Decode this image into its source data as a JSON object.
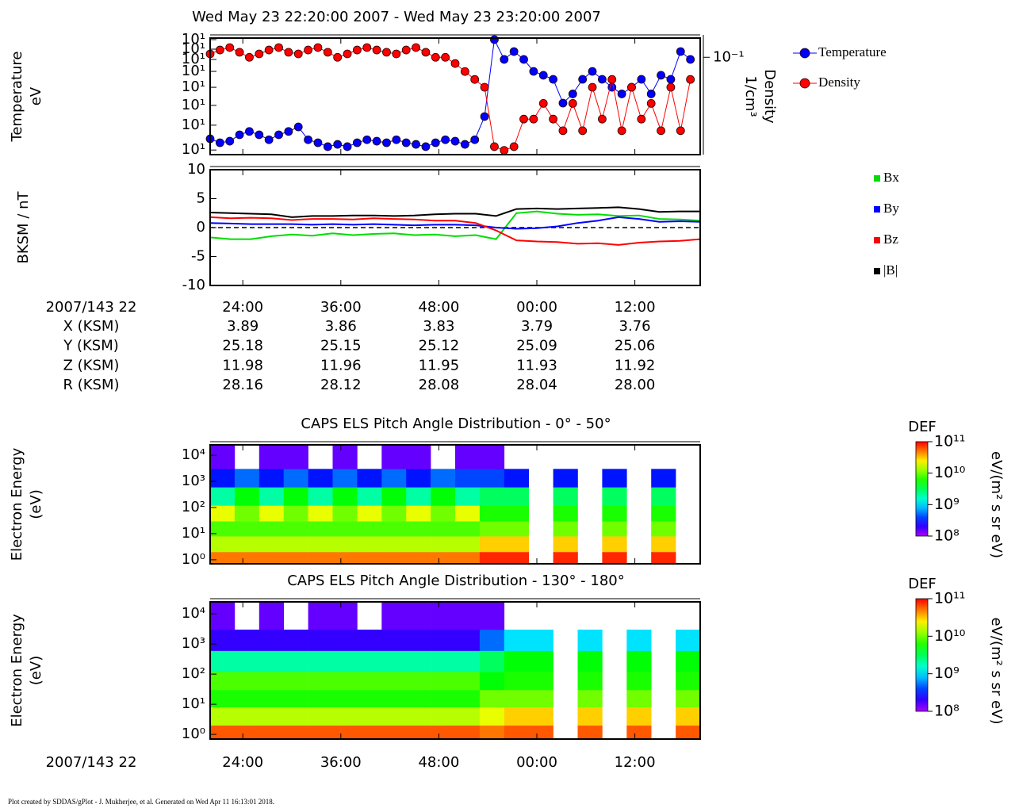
{
  "title": "Wed May 23 22:20:00 2007 - Wed May 23 23:20:00 2007",
  "footer": "Plot created by SDDAS/gPlot - J. Mukherjee, et al.  Generated on Wed Apr 11 16:13:01 2018.",
  "time_axis": {
    "label": "2007/143 22",
    "xlim": [
      0,
      60
    ],
    "xticks": [
      {
        "value": 4,
        "label": "24:00"
      },
      {
        "value": 16,
        "label": "36:00"
      },
      {
        "value": 28,
        "label": "48:00"
      },
      {
        "value": 40,
        "label": "00:00"
      },
      {
        "value": 52,
        "label": "12:00"
      }
    ]
  },
  "ephemeris": {
    "rows": [
      {
        "label": "X (KSM)",
        "values": [
          "3.89",
          "3.86",
          "3.83",
          "3.79",
          "3.76"
        ]
      },
      {
        "label": "Y (KSM)",
        "values": [
          "25.18",
          "25.15",
          "25.12",
          "25.09",
          "25.06"
        ]
      },
      {
        "label": "Z (KSM)",
        "values": [
          "11.98",
          "11.96",
          "11.95",
          "11.93",
          "11.92"
        ]
      },
      {
        "label": "R (KSM)",
        "values": [
          "28.16",
          "28.12",
          "28.08",
          "28.04",
          "28.00"
        ]
      }
    ]
  },
  "chart_data": [
    {
      "type": "line",
      "ylabel": [
        "Temperature",
        "eV"
      ],
      "y2label": [
        "Density",
        "1/cm³"
      ],
      "ylog": true,
      "y2log": true,
      "markers": true,
      "legend": "right",
      "ylim": [
        10,
        1000
      ],
      "yticks": [
        {
          "value": 12,
          "label": "10¹"
        },
        {
          "value": 32,
          "label": "10¹"
        },
        {
          "value": 70,
          "label": "10¹"
        },
        {
          "value": 143,
          "label": "10¹"
        },
        {
          "value": 268,
          "label": "10¹"
        },
        {
          "value": 430,
          "label": "10¹"
        },
        {
          "value": 645,
          "label": "10¹"
        },
        {
          "value": 940,
          "label": "10¹"
        }
      ],
      "y2lim": [
        0.003,
        0.2
      ],
      "y2ticks": [
        {
          "value": 0.1,
          "label": "10⁻¹"
        }
      ],
      "x": [
        0,
        1.2,
        2.4,
        3.6,
        4.8,
        6,
        7.2,
        8.4,
        9.6,
        10.8,
        12,
        13.2,
        14.4,
        15.6,
        16.8,
        18,
        19.2,
        20.4,
        21.6,
        22.8,
        24,
        25.2,
        26.4,
        27.6,
        28.8,
        30,
        31.2,
        32.4,
        33.6,
        34.8,
        36,
        37.2,
        38.4,
        39.6,
        40.8,
        42,
        43.2,
        44.4,
        45.6,
        46.8,
        48,
        49.2,
        50.4,
        51.6,
        52.8,
        54,
        55.2,
        56.4,
        57.6,
        58.8
      ],
      "series": [
        {
          "name": "Temperature",
          "color": "#0000ff",
          "values": [
            18.7,
            16,
            17,
            21.9,
            25,
            21.9,
            18,
            21.9,
            25,
            29.9,
            18,
            16,
            13.7,
            15,
            13.7,
            16,
            18,
            17,
            16,
            18,
            16,
            15,
            13.7,
            16,
            18,
            17,
            15,
            18,
            45,
            940,
            430,
            587,
            430,
            268,
            230,
            196,
            76.6,
            110,
            196,
            268,
            196,
            143,
            110,
            143,
            196,
            110,
            230,
            196,
            587,
            430
          ]
        },
        {
          "name": "Density",
          "color": "#ff0000",
          "axis": "y2",
          "values": [
            0.113,
            0.13,
            0.142,
            0.12,
            0.1,
            0.113,
            0.13,
            0.142,
            0.12,
            0.113,
            0.13,
            0.142,
            0.12,
            0.1,
            0.113,
            0.13,
            0.142,
            0.13,
            0.12,
            0.113,
            0.13,
            0.142,
            0.12,
            0.1,
            0.1,
            0.08,
            0.06,
            0.045,
            0.034,
            0.004,
            0.0035,
            0.004,
            0.0108,
            0.0108,
            0.019,
            0.0108,
            0.0071,
            0.019,
            0.0071,
            0.034,
            0.0108,
            0.045,
            0.0071,
            0.034,
            0.0108,
            0.019,
            0.0071,
            0.034,
            0.0071,
            0.045
          ]
        }
      ]
    },
    {
      "type": "line",
      "ylabel": [
        "BKSM / nT"
      ],
      "ylim": [
        -10,
        10
      ],
      "yticks": [
        -10,
        -5,
        0,
        5,
        10
      ],
      "reference_line": 0,
      "legend": "right",
      "x": [
        0,
        2.5,
        5,
        7.5,
        10,
        12.5,
        15,
        17.5,
        20,
        22.5,
        25,
        27.5,
        30,
        32.5,
        35,
        37.5,
        40,
        42.5,
        45,
        47.5,
        50,
        52.5,
        55,
        57.5,
        60
      ],
      "series": [
        {
          "name": "Bx",
          "color": "#00dd00",
          "values": [
            -1.7,
            -2.0,
            -2.0,
            -1.5,
            -1.2,
            -1.4,
            -1.0,
            -1.3,
            -1.1,
            -1.0,
            -1.3,
            -1.2,
            -1.5,
            -1.3,
            -2.0,
            2.5,
            2.8,
            2.4,
            2.2,
            2.3,
            2.0,
            2.1,
            1.5,
            1.4,
            1.2
          ]
        },
        {
          "name": "By",
          "color": "#0000ff",
          "values": [
            0.8,
            0.7,
            0.6,
            0.6,
            0.6,
            0.5,
            0.6,
            0.5,
            0.6,
            0.5,
            0.4,
            0.5,
            0.5,
            0.4,
            0.0,
            -0.2,
            -0.1,
            0.2,
            0.8,
            1.2,
            1.8,
            1.5,
            1.0,
            1.1,
            1.0
          ]
        },
        {
          "name": "Bz",
          "color": "#ff0000",
          "values": [
            1.8,
            1.6,
            1.7,
            1.6,
            1.3,
            1.5,
            1.5,
            1.4,
            1.6,
            1.5,
            1.4,
            1.2,
            1.2,
            0.8,
            -0.5,
            -2.2,
            -2.4,
            -2.5,
            -2.8,
            -2.7,
            -3.0,
            -2.6,
            -2.4,
            -2.3,
            -2.0
          ]
        },
        {
          "name": "|B|",
          "color": "#000000",
          "values": [
            2.6,
            2.5,
            2.4,
            2.3,
            1.8,
            2.0,
            2.0,
            2.1,
            2.1,
            2.0,
            2.1,
            2.3,
            2.4,
            2.4,
            2.0,
            3.2,
            3.3,
            3.2,
            3.3,
            3.4,
            3.5,
            3.2,
            2.7,
            2.8,
            2.8
          ]
        }
      ]
    },
    {
      "type": "heatmap",
      "title": "CAPS ELS Pitch Angle Distribution - 0° - 50°",
      "ylabel": [
        "Electron Energy",
        "(eV)"
      ],
      "ylog": true,
      "ylim": [
        0.7,
        25000
      ],
      "yticks": [
        {
          "value": 1,
          "label": "10⁰"
        },
        {
          "value": 10,
          "label": "10¹"
        },
        {
          "value": 100,
          "label": "10²"
        },
        {
          "value": 1000,
          "label": "10³"
        },
        {
          "value": 10000,
          "label": "10⁴"
        }
      ],
      "x_edges": [
        0,
        3,
        6,
        9,
        12,
        15,
        18,
        21,
        24,
        27,
        30,
        33,
        36,
        39,
        42,
        45,
        48,
        51,
        54,
        57,
        60
      ],
      "y_edges": [
        0.7,
        2,
        8,
        30,
        120,
        600,
        3000,
        25000
      ],
      "colormap": "rainbow",
      "colorbar": {
        "title": "DEF",
        "label": "eV/(m² s sr eV)",
        "log": true,
        "clim": [
          100000000.0,
          100000000000.0
        ],
        "ticks": [
          {
            "value": 100000000.0,
            "label": "10⁸"
          },
          {
            "value": 1000000000.0,
            "label": "10⁹"
          },
          {
            "value": 10000000000.0,
            "label": "10¹⁰"
          },
          {
            "value": 100000000000.0,
            "label": "10¹¹"
          }
        ]
      },
      "z": [
        [
          50000000000.0,
          50000000000.0,
          50000000000.0,
          50000000000.0,
          50000000000.0,
          50000000000.0,
          50000000000.0,
          50000000000.0,
          50000000000.0,
          50000000000.0,
          50000000000.0,
          80000000000.0,
          80000000000.0,
          null,
          80000000000.0,
          null,
          80000000000.0,
          null,
          80000000000.0,
          null
        ],
        [
          15000000000.0,
          15000000000.0,
          15000000000.0,
          15000000000.0,
          15000000000.0,
          15000000000.0,
          15000000000.0,
          15000000000.0,
          15000000000.0,
          15000000000.0,
          15000000000.0,
          30000000000.0,
          30000000000.0,
          null,
          30000000000.0,
          null,
          30000000000.0,
          null,
          30000000000.0,
          null
        ],
        [
          8000000000.0,
          8000000000.0,
          8000000000.0,
          8000000000.0,
          8000000000.0,
          8000000000.0,
          8000000000.0,
          8000000000.0,
          8000000000.0,
          8000000000.0,
          8000000000.0,
          10000000000.0,
          10000000000.0,
          null,
          10000000000.0,
          null,
          10000000000.0,
          null,
          10000000000.0,
          null
        ],
        [
          20000000000.0,
          10000000000.0,
          20000000000.0,
          10000000000.0,
          20000000000.0,
          10000000000.0,
          20000000000.0,
          10000000000.0,
          20000000000.0,
          10000000000.0,
          20000000000.0,
          6000000000.0,
          6000000000.0,
          null,
          6000000000.0,
          null,
          6000000000.0,
          null,
          6000000000.0,
          null
        ],
        [
          2000000000.0,
          5000000000.0,
          2000000000.0,
          5000000000.0,
          2000000000.0,
          5000000000.0,
          2000000000.0,
          5000000000.0,
          2000000000.0,
          5000000000.0,
          2000000000.0,
          3000000000.0,
          3000000000.0,
          null,
          3000000000.0,
          null,
          3000000000.0,
          null,
          3000000000.0,
          null
        ],
        [
          300000000.0,
          500000000.0,
          300000000.0,
          500000000.0,
          300000000.0,
          500000000.0,
          300000000.0,
          500000000.0,
          300000000.0,
          500000000.0,
          400000000.0,
          400000000.0,
          300000000.0,
          null,
          300000000.0,
          null,
          300000000.0,
          null,
          300000000.0,
          null
        ],
        [
          150000000.0,
          null,
          150000000.0,
          150000000.0,
          null,
          150000000.0,
          null,
          150000000.0,
          150000000.0,
          null,
          150000000.0,
          150000000.0,
          null,
          null,
          null,
          null,
          null,
          null,
          null,
          null
        ]
      ]
    },
    {
      "type": "heatmap",
      "title": "CAPS ELS Pitch Angle Distribution - 130° - 180°",
      "ylabel": [
        "Electron Energy",
        "(eV)"
      ],
      "ylog": true,
      "ylim": [
        0.7,
        25000
      ],
      "yticks": [
        {
          "value": 1,
          "label": "10⁰"
        },
        {
          "value": 10,
          "label": "10¹"
        },
        {
          "value": 100,
          "label": "10²"
        },
        {
          "value": 1000,
          "label": "10³"
        },
        {
          "value": 10000,
          "label": "10⁴"
        }
      ],
      "x_edges": [
        0,
        3,
        6,
        9,
        12,
        15,
        18,
        21,
        24,
        27,
        30,
        33,
        36,
        39,
        42,
        45,
        48,
        51,
        54,
        57,
        60
      ],
      "y_edges": [
        0.7,
        2,
        8,
        30,
        120,
        600,
        3000,
        25000
      ],
      "colormap": "rainbow",
      "colorbar": {
        "title": "DEF",
        "label": "eV/(m² s sr eV)",
        "log": true,
        "clim": [
          100000000.0,
          100000000000.0
        ],
        "ticks": [
          {
            "value": 100000000.0,
            "label": "10⁸"
          },
          {
            "value": 1000000000.0,
            "label": "10⁹"
          },
          {
            "value": 10000000000.0,
            "label": "10¹⁰"
          },
          {
            "value": 100000000000.0,
            "label": "10¹¹"
          }
        ]
      },
      "z": [
        [
          60000000000.0,
          60000000000.0,
          60000000000.0,
          60000000000.0,
          60000000000.0,
          60000000000.0,
          60000000000.0,
          60000000000.0,
          60000000000.0,
          60000000000.0,
          60000000000.0,
          50000000000.0,
          60000000000.0,
          60000000000.0,
          null,
          60000000000.0,
          null,
          60000000000.0,
          null,
          60000000000.0
        ],
        [
          15000000000.0,
          15000000000.0,
          15000000000.0,
          15000000000.0,
          15000000000.0,
          15000000000.0,
          15000000000.0,
          15000000000.0,
          15000000000.0,
          15000000000.0,
          15000000000.0,
          20000000000.0,
          30000000000.0,
          30000000000.0,
          null,
          30000000000.0,
          null,
          30000000000.0,
          null,
          30000000000.0
        ],
        [
          6000000000.0,
          6000000000.0,
          6000000000.0,
          6000000000.0,
          6000000000.0,
          6000000000.0,
          6000000000.0,
          6000000000.0,
          6000000000.0,
          6000000000.0,
          6000000000.0,
          10000000000.0,
          10000000000.0,
          10000000000.0,
          null,
          10000000000.0,
          null,
          10000000000.0,
          null,
          10000000000.0
        ],
        [
          8000000000.0,
          8000000000.0,
          8000000000.0,
          8000000000.0,
          8000000000.0,
          8000000000.0,
          8000000000.0,
          8000000000.0,
          8000000000.0,
          8000000000.0,
          8000000000.0,
          5000000000.0,
          6000000000.0,
          6000000000.0,
          null,
          6000000000.0,
          null,
          6000000000.0,
          null,
          6000000000.0
        ],
        [
          2000000000.0,
          2000000000.0,
          2000000000.0,
          2000000000.0,
          2000000000.0,
          2000000000.0,
          2000000000.0,
          2000000000.0,
          2000000000.0,
          2000000000.0,
          2000000000.0,
          3000000000.0,
          5000000000.0,
          5000000000.0,
          null,
          5000000000.0,
          null,
          5000000000.0,
          null,
          5000000000.0
        ],
        [
          200000000.0,
          200000000.0,
          200000000.0,
          200000000.0,
          200000000.0,
          200000000.0,
          200000000.0,
          200000000.0,
          200000000.0,
          200000000.0,
          200000000.0,
          500000000.0,
          1000000000.0,
          1000000000.0,
          null,
          1000000000.0,
          null,
          1000000000.0,
          null,
          1000000000.0
        ],
        [
          150000000.0,
          null,
          150000000.0,
          null,
          150000000.0,
          150000000.0,
          null,
          150000000.0,
          150000000.0,
          150000000.0,
          150000000.0,
          150000000.0,
          null,
          null,
          null,
          null,
          null,
          null,
          null,
          null
        ]
      ]
    }
  ]
}
